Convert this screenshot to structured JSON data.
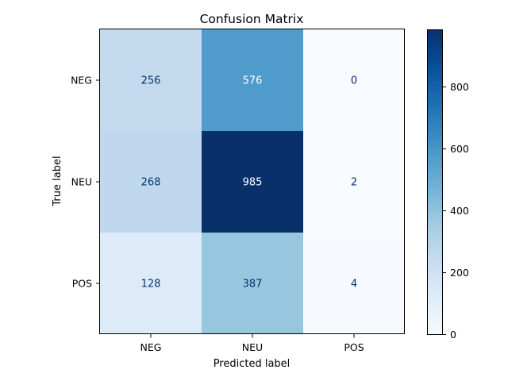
{
  "chart_data": {
    "type": "heatmap",
    "title": "Confusion Matrix",
    "xlabel": "Predicted label",
    "ylabel": "True label",
    "x_categories": [
      "NEG",
      "NEU",
      "POS"
    ],
    "y_categories": [
      "NEG",
      "NEU",
      "POS"
    ],
    "values": [
      [
        256,
        576,
        0
      ],
      [
        268,
        985,
        2
      ],
      [
        128,
        387,
        4
      ]
    ],
    "colormap": "Blues",
    "colorbar": {
      "min": 0,
      "max": 985,
      "ticks": [
        0,
        200,
        400,
        600,
        800
      ],
      "tick_labels": [
        "0",
        "200",
        "400",
        "600",
        "800"
      ]
    },
    "grid": false
  }
}
